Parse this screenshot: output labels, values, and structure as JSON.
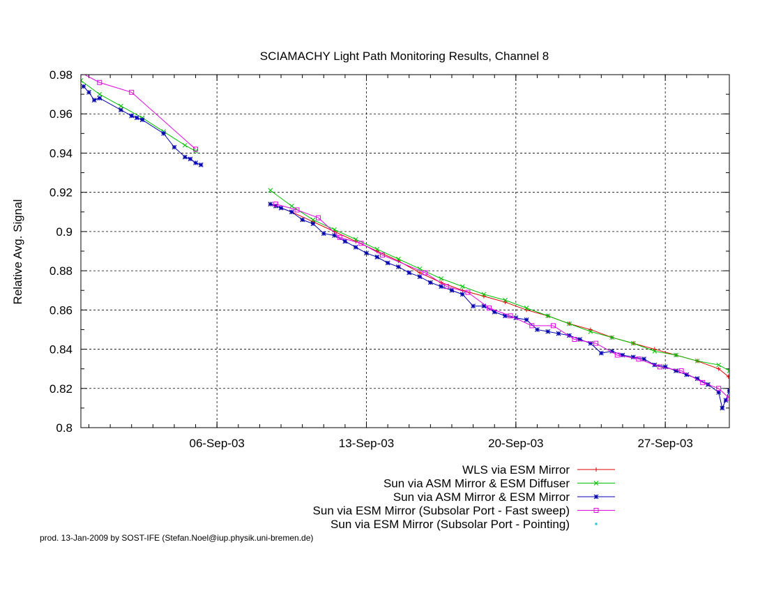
{
  "footer_text": "prod. 13-Jan-2009 by SOST-IFE (Stefan.Noel@iup.physik.uni-bremen.de)",
  "chart_data": {
    "type": "line",
    "title": "SCIAMACHY Light Path Monitoring Results, Channel 8",
    "xlabel": "",
    "ylabel": "Relative Avg. Signal",
    "x_unit": "date",
    "xlim": [
      "2003-08-30T15:00",
      "2003-09-30T00:00"
    ],
    "ylim": [
      0.8,
      0.98
    ],
    "yticks": [
      0.8,
      0.82,
      0.84,
      0.86,
      0.88,
      0.9,
      0.92,
      0.94,
      0.96,
      0.98
    ],
    "ytick_labels": [
      "0.8",
      "0.82",
      "0.84",
      "0.86",
      "0.88",
      "0.9",
      "0.92",
      "0.94",
      "0.96",
      "0.98"
    ],
    "xticks": [
      "2003-09-06",
      "2003-09-13",
      "2003-09-20",
      "2003-09-27"
    ],
    "xtick_labels": [
      "06-Sep-03",
      "13-Sep-03",
      "20-Sep-03",
      "27-Sep-03"
    ],
    "grid": true,
    "legend_position": "below",
    "series": [
      {
        "name": "WLS via ESM Mirror",
        "color": "#e00000",
        "marker": "plus",
        "points": [
          [
            "2003-09-08T12:00",
            0.914
          ],
          [
            "2003-09-09T12:00",
            0.91
          ],
          [
            "2003-09-10T12:00",
            0.905
          ],
          [
            "2003-09-11T12:00",
            0.9
          ],
          [
            "2003-09-12T12:00",
            0.895
          ],
          [
            "2003-09-13T12:00",
            0.89
          ],
          [
            "2003-09-14T12:00",
            0.885
          ],
          [
            "2003-09-15T12:00",
            0.879
          ],
          [
            "2003-09-16T12:00",
            0.874
          ],
          [
            "2003-09-17T12:00",
            0.87
          ],
          [
            "2003-09-18T12:00",
            0.867
          ],
          [
            "2003-09-19T12:00",
            0.864
          ],
          [
            "2003-09-20T12:00",
            0.86
          ],
          [
            "2003-09-21T12:00",
            0.857
          ],
          [
            "2003-09-22T12:00",
            0.853
          ],
          [
            "2003-09-23T12:00",
            0.85
          ],
          [
            "2003-09-24T12:00",
            0.846
          ],
          [
            "2003-09-25T12:00",
            0.843
          ],
          [
            "2003-09-26T12:00",
            0.84
          ],
          [
            "2003-09-27T12:00",
            0.837
          ],
          [
            "2003-09-28T12:00",
            0.834
          ],
          [
            "2003-09-29T12:00",
            0.83
          ],
          [
            "2003-09-29T23:00",
            0.826
          ]
        ]
      },
      {
        "name": "Sun via ASM Mirror & ESM Diffuser",
        "color": "#00c000",
        "marker": "cross",
        "points": [
          [
            "2003-08-30T15:00",
            0.977
          ],
          [
            "2003-08-31T12:00",
            0.97
          ],
          [
            "2003-09-01T12:00",
            0.964
          ],
          [
            "2003-09-02T12:00",
            0.958
          ],
          [
            "2003-09-03T12:00",
            0.951
          ],
          [
            "2003-09-04T12:00",
            0.944
          ],
          [
            "2003-09-05T00:00",
            0.941
          ],
          null,
          [
            "2003-09-08T12:00",
            0.921
          ],
          [
            "2003-09-09T12:00",
            0.913
          ],
          [
            "2003-09-10T12:00",
            0.906
          ],
          [
            "2003-09-11T12:00",
            0.901
          ],
          [
            "2003-09-12T12:00",
            0.896
          ],
          [
            "2003-09-13T12:00",
            0.891
          ],
          [
            "2003-09-14T12:00",
            0.886
          ],
          [
            "2003-09-15T12:00",
            0.881
          ],
          [
            "2003-09-16T12:00",
            0.876
          ],
          [
            "2003-09-17T12:00",
            0.872
          ],
          [
            "2003-09-18T12:00",
            0.868
          ],
          [
            "2003-09-19T12:00",
            0.865
          ],
          [
            "2003-09-20T12:00",
            0.861
          ],
          [
            "2003-09-21T12:00",
            0.857
          ],
          [
            "2003-09-22T12:00",
            0.853
          ],
          [
            "2003-09-23T12:00",
            0.849
          ],
          [
            "2003-09-24T12:00",
            0.846
          ],
          [
            "2003-09-25T12:00",
            0.843
          ],
          [
            "2003-09-26T12:00",
            0.839
          ],
          [
            "2003-09-27T12:00",
            0.837
          ],
          [
            "2003-09-28T12:00",
            0.834
          ],
          [
            "2003-09-29T12:00",
            0.832
          ],
          [
            "2003-09-30T00:00",
            0.829
          ]
        ]
      },
      {
        "name": "Sun via ASM Mirror & ESM Mirror",
        "color": "#0000b0",
        "marker": "star",
        "points": [
          [
            "2003-08-30T18:00",
            0.974
          ],
          [
            "2003-08-31T00:00",
            0.971
          ],
          [
            "2003-08-31T06:00",
            0.967
          ],
          [
            "2003-08-31T12:00",
            0.968
          ],
          [
            "2003-09-01T12:00",
            0.962
          ],
          [
            "2003-09-02T00:00",
            0.959
          ],
          [
            "2003-09-02T06:00",
            0.958
          ],
          [
            "2003-09-02T12:00",
            0.957
          ],
          [
            "2003-09-03T12:00",
            0.95
          ],
          [
            "2003-09-04T00:00",
            0.943
          ],
          [
            "2003-09-04T12:00",
            0.938
          ],
          [
            "2003-09-04T18:00",
            0.937
          ],
          [
            "2003-09-05T00:00",
            0.935
          ],
          [
            "2003-09-05T06:00",
            0.934
          ],
          null,
          [
            "2003-09-08T12:00",
            0.914
          ],
          [
            "2003-09-08T18:00",
            0.913
          ],
          [
            "2003-09-09T00:00",
            0.912
          ],
          [
            "2003-09-09T12:00",
            0.91
          ],
          [
            "2003-09-10T00:00",
            0.906
          ],
          [
            "2003-09-10T12:00",
            0.904
          ],
          [
            "2003-09-11T00:00",
            0.899
          ],
          [
            "2003-09-11T12:00",
            0.898
          ],
          [
            "2003-09-12T00:00",
            0.895
          ],
          [
            "2003-09-12T12:00",
            0.892
          ],
          [
            "2003-09-13T00:00",
            0.889
          ],
          [
            "2003-09-13T12:00",
            0.887
          ],
          [
            "2003-09-14T00:00",
            0.884
          ],
          [
            "2003-09-14T12:00",
            0.882
          ],
          [
            "2003-09-15T00:00",
            0.879
          ],
          [
            "2003-09-15T12:00",
            0.877
          ],
          [
            "2003-09-16T00:00",
            0.874
          ],
          [
            "2003-09-16T12:00",
            0.872
          ],
          [
            "2003-09-17T00:00",
            0.87
          ],
          [
            "2003-09-17T12:00",
            0.868
          ],
          [
            "2003-09-18T00:00",
            0.862
          ],
          [
            "2003-09-18T12:00",
            0.862
          ],
          [
            "2003-09-19T00:00",
            0.859
          ],
          [
            "2003-09-19T12:00",
            0.857
          ],
          [
            "2003-09-20T00:00",
            0.856
          ],
          [
            "2003-09-20T12:00",
            0.855
          ],
          [
            "2003-09-21T00:00",
            0.85
          ],
          [
            "2003-09-21T12:00",
            0.849
          ],
          [
            "2003-09-22T00:00",
            0.848
          ],
          [
            "2003-09-22T12:00",
            0.847
          ],
          [
            "2003-09-23T00:00",
            0.845
          ],
          [
            "2003-09-23T12:00",
            0.843
          ],
          [
            "2003-09-24T00:00",
            0.838
          ],
          [
            "2003-09-24T12:00",
            0.839
          ],
          [
            "2003-09-25T00:00",
            0.837
          ],
          [
            "2003-09-25T12:00",
            0.836
          ],
          [
            "2003-09-26T00:00",
            0.835
          ],
          [
            "2003-09-26T12:00",
            0.832
          ],
          [
            "2003-09-27T00:00",
            0.831
          ],
          [
            "2003-09-27T12:00",
            0.829
          ],
          [
            "2003-09-28T00:00",
            0.827
          ],
          [
            "2003-09-28T12:00",
            0.825
          ],
          [
            "2003-09-29T00:00",
            0.822
          ],
          [
            "2003-09-29T12:00",
            0.818
          ],
          [
            "2003-09-29T16:00",
            0.81
          ],
          [
            "2003-09-29T20:00",
            0.814
          ],
          [
            "2003-09-30T00:00",
            0.819
          ]
        ]
      },
      {
        "name": "Sun via ESM Mirror (Subsolar Port - Fast sweep)",
        "color": "#e000e0",
        "marker": "square",
        "points": [
          [
            "2003-08-30T15:00",
            0.981
          ],
          [
            "2003-08-31T12:00",
            0.976
          ],
          [
            "2003-09-02T00:00",
            0.971
          ],
          [
            "2003-09-05T00:00",
            0.942
          ],
          null,
          [
            "2003-09-08T18:00",
            0.914
          ],
          [
            "2003-09-09T18:00",
            0.911
          ],
          [
            "2003-09-10T18:00",
            0.907
          ],
          [
            "2003-09-11T18:00",
            0.897
          ],
          [
            "2003-09-12T18:00",
            0.894
          ],
          [
            "2003-09-13T18:00",
            0.888
          ],
          [
            "2003-09-15T18:00",
            0.879
          ],
          [
            "2003-09-16T18:00",
            0.872
          ],
          [
            "2003-09-17T18:00",
            0.869
          ],
          [
            "2003-09-18T18:00",
            0.861
          ],
          [
            "2003-09-19T18:00",
            0.857
          ],
          [
            "2003-09-20T18:00",
            0.852
          ],
          [
            "2003-09-21T18:00",
            0.852
          ],
          [
            "2003-09-22T18:00",
            0.845
          ],
          [
            "2003-09-23T18:00",
            0.843
          ],
          [
            "2003-09-24T18:00",
            0.837
          ],
          [
            "2003-09-25T18:00",
            0.835
          ],
          [
            "2003-09-26T18:00",
            0.831
          ],
          [
            "2003-09-27T18:00",
            0.829
          ],
          [
            "2003-09-28T18:00",
            0.823
          ],
          [
            "2003-09-29T12:00",
            0.82
          ],
          [
            "2003-09-30T00:00",
            0.815
          ]
        ]
      },
      {
        "name": "Sun via ESM Mirror (Subsolar Port - Pointing)",
        "color": "#00c8e0",
        "marker": "dot",
        "points": []
      }
    ]
  }
}
